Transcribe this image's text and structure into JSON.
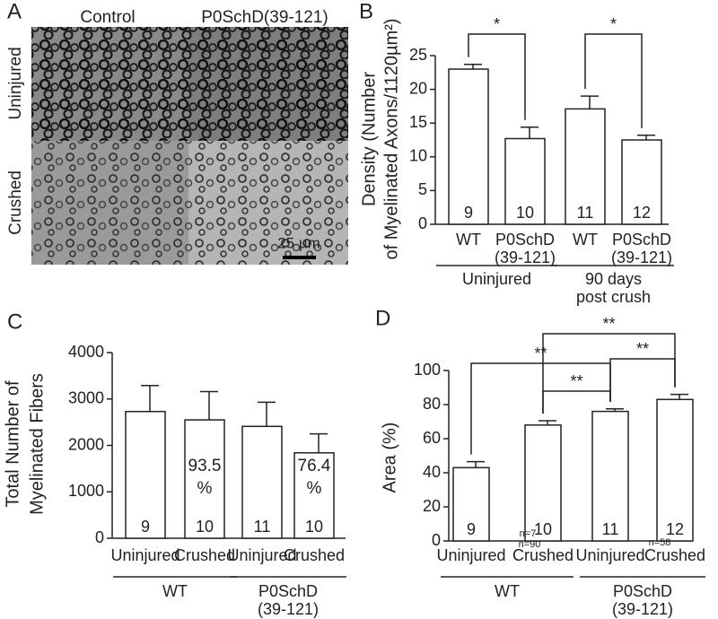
{
  "panel_a": {
    "letter": "A",
    "columns": [
      "Control",
      "P0SchD(39-121)"
    ],
    "rows": [
      "Uninjured",
      "Crushed"
    ],
    "scale_bar": "25 µm"
  },
  "chart_data": [
    {
      "type": "bar",
      "panel": "B",
      "y_label": [
        "Density (Number",
        "of Myelinated Axons/1120µm²)"
      ],
      "categories": [
        [
          "WT"
        ],
        [
          "P0SchD",
          "(39-121)"
        ],
        [
          "WT"
        ],
        [
          "P0SchD",
          "(39-121)"
        ]
      ],
      "groups": [
        [
          "Uninjured"
        ],
        [
          "90 days",
          "post crush"
        ]
      ],
      "values": [
        23,
        12.7,
        17.1,
        12.5
      ],
      "errors": [
        0.7,
        1.7,
        1.9,
        0.7
      ],
      "n_labels": [
        "9",
        "10",
        "11",
        "12"
      ],
      "significance": [
        "*",
        "*"
      ],
      "ylim": [
        0,
        25
      ],
      "yticks": [
        0,
        5,
        10,
        15,
        20,
        25
      ],
      "color": "#ffffff"
    },
    {
      "type": "bar",
      "panel": "C",
      "y_label": [
        "Total Number of",
        "Myelinated Fibers"
      ],
      "categories": [
        [
          "Uninjured"
        ],
        [
          "Crushed"
        ],
        [
          "Uninjured"
        ],
        [
          "Crushed"
        ]
      ],
      "groups": [
        [
          "WT"
        ],
        [
          "P0SchD",
          "(39-121)"
        ]
      ],
      "values": [
        2730,
        2550,
        2410,
        1840
      ],
      "errors": [
        560,
        610,
        520,
        410
      ],
      "n_labels": [
        "9",
        "10",
        "11",
        "10"
      ],
      "annotations": [
        null,
        [
          "93.5",
          "%"
        ],
        null,
        [
          "76.4",
          "%"
        ]
      ],
      "ylim": [
        0,
        4000
      ],
      "yticks": [
        0,
        1000,
        2000,
        3000,
        4000
      ],
      "color": "#ffffff"
    },
    {
      "type": "bar",
      "panel": "D",
      "y_label": [
        "Area (%)"
      ],
      "categories": [
        [
          "Uninjured"
        ],
        [
          "Crushed"
        ],
        [
          "Uninjured"
        ],
        [
          "Crushed"
        ]
      ],
      "groups": [
        [
          "WT"
        ],
        [
          "P0SchD",
          "(39-121)"
        ]
      ],
      "values": [
        43,
        68,
        76,
        83
      ],
      "errors": [
        3.5,
        2.5,
        1.5,
        3
      ],
      "n_labels": [
        "9",
        "10",
        "11",
        "12"
      ],
      "notes": [
        "n=7",
        "n=90",
        "n=58"
      ],
      "significance": [
        "**",
        "**",
        "**",
        "**"
      ],
      "ylim": [
        0,
        100
      ],
      "yticks": [
        0,
        20,
        40,
        60,
        80,
        100
      ],
      "color": "#ffffff"
    }
  ]
}
